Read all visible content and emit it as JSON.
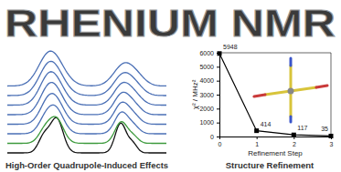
{
  "title": "RHENIUM NMR",
  "captions": [
    "High-Order Quadrupole-Induced Effects",
    "Structure Refinement"
  ],
  "chart_data": {
    "type": "line",
    "x": [
      0,
      1,
      2,
      3
    ],
    "values": [
      5948,
      414,
      117,
      35
    ],
    "color": "#000000",
    "marker": "square",
    "data_labels": true,
    "xlim": [
      0,
      3
    ],
    "ylim": [
      0,
      6000
    ],
    "xticks": [
      0,
      1,
      2,
      3
    ],
    "yticks": [
      0,
      1000,
      2000,
      3000,
      4000,
      5000,
      6000
    ],
    "xlabel": "Refinement Step",
    "ylabel": "χ² / MHz²"
  }
}
